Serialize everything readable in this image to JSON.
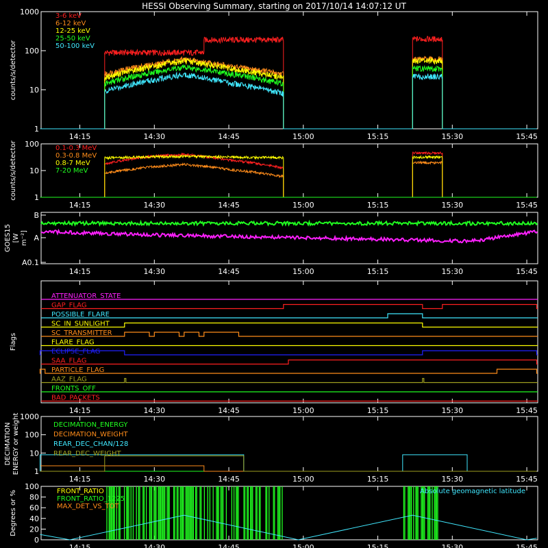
{
  "title": "HESSI Observing Summary, starting on 2017/10/14 14:07:12 UT",
  "time_ticks": [
    "14:15",
    "14:30",
    "14:45",
    "15:00",
    "15:15",
    "15:30",
    "15:45"
  ],
  "colors": {
    "background": "#000000",
    "axes": "#ffffff",
    "red": "#ff2020",
    "orange": "#ff8c1a",
    "yellow": "#ffff00",
    "green": "#20ff20",
    "cyan": "#40e8ff",
    "magenta": "#ff20ff",
    "blue": "#2020ff",
    "olive": "#a0a020"
  },
  "chart_data": [
    {
      "type": "line",
      "ylabel": "counts/s/detector",
      "yscale": "log",
      "ylim": [
        1,
        1000
      ],
      "ytick_labels": [
        "1",
        "10",
        "100",
        "1000"
      ],
      "x_unit": "UT",
      "series": [
        {
          "name": "3-6 keV",
          "color": "#ff2020",
          "points": [
            [
              "14:07",
              1
            ],
            [
              "14:20",
              1
            ],
            [
              "14:20",
              90
            ],
            [
              "14:40",
              90
            ],
            [
              "14:40",
              190
            ],
            [
              "14:56",
              190
            ],
            [
              "14:56",
              1
            ],
            [
              "15:22",
              1
            ],
            [
              "15:22",
              200
            ],
            [
              "15:28",
              200
            ],
            [
              "15:28",
              1
            ],
            [
              "15:47",
              1
            ]
          ]
        },
        {
          "name": "6-12 keV",
          "color": "#ff8c1a",
          "points": [
            [
              "14:07",
              1
            ],
            [
              "14:20",
              1
            ],
            [
              "14:20",
              25
            ],
            [
              "14:30",
              45
            ],
            [
              "14:36",
              60
            ],
            [
              "14:45",
              40
            ],
            [
              "14:56",
              25
            ],
            [
              "14:56",
              1
            ],
            [
              "15:22",
              1
            ],
            [
              "15:22",
              60
            ],
            [
              "15:28",
              60
            ],
            [
              "15:28",
              1
            ],
            [
              "15:47",
              1
            ]
          ]
        },
        {
          "name": "12-25 keV",
          "color": "#ffff00",
          "points": [
            [
              "14:07",
              1
            ],
            [
              "14:20",
              1
            ],
            [
              "14:20",
              20
            ],
            [
              "14:30",
              40
            ],
            [
              "14:36",
              55
            ],
            [
              "14:45",
              35
            ],
            [
              "14:56",
              20
            ],
            [
              "14:56",
              1
            ],
            [
              "15:22",
              1
            ],
            [
              "15:22",
              55
            ],
            [
              "15:28",
              55
            ],
            [
              "15:28",
              1
            ],
            [
              "15:47",
              1
            ]
          ]
        },
        {
          "name": "25-50 keV",
          "color": "#20ff20",
          "points": [
            [
              "14:07",
              1
            ],
            [
              "14:20",
              1
            ],
            [
              "14:20",
              14
            ],
            [
              "14:30",
              28
            ],
            [
              "14:36",
              38
            ],
            [
              "14:45",
              26
            ],
            [
              "14:56",
              14
            ],
            [
              "14:56",
              1
            ],
            [
              "15:22",
              1
            ],
            [
              "15:22",
              35
            ],
            [
              "15:28",
              35
            ],
            [
              "15:28",
              1
            ],
            [
              "15:47",
              1
            ]
          ]
        },
        {
          "name": "50-100 keV",
          "color": "#40e8ff",
          "points": [
            [
              "14:07",
              1
            ],
            [
              "14:20",
              1
            ],
            [
              "14:20",
              9
            ],
            [
              "14:30",
              18
            ],
            [
              "14:36",
              25
            ],
            [
              "14:45",
              15
            ],
            [
              "14:56",
              8
            ],
            [
              "14:56",
              1
            ],
            [
              "15:22",
              1
            ],
            [
              "15:22",
              22
            ],
            [
              "15:28",
              22
            ],
            [
              "15:28",
              1
            ],
            [
              "15:47",
              1
            ]
          ]
        }
      ]
    },
    {
      "type": "line",
      "ylabel": "counts/s/detector",
      "yscale": "log",
      "ylim": [
        1,
        100
      ],
      "ytick_labels": [
        "1",
        "10",
        "100"
      ],
      "series": [
        {
          "name": "0.1-0.3 MeV",
          "color": "#ff2020",
          "points": [
            [
              "14:07",
              1
            ],
            [
              "14:20",
              1
            ],
            [
              "14:20",
              18
            ],
            [
              "14:30",
              35
            ],
            [
              "14:36",
              40
            ],
            [
              "14:45",
              25
            ],
            [
              "14:56",
              12
            ],
            [
              "14:56",
              1
            ],
            [
              "15:22",
              1
            ],
            [
              "15:22",
              45
            ],
            [
              "15:28",
              45
            ],
            [
              "15:28",
              1
            ],
            [
              "15:47",
              1
            ]
          ]
        },
        {
          "name": "0.3-0.8 MeV",
          "color": "#ff8c1a",
          "points": [
            [
              "14:07",
              1
            ],
            [
              "14:20",
              1
            ],
            [
              "14:20",
              8
            ],
            [
              "14:30",
              14
            ],
            [
              "14:36",
              17
            ],
            [
              "14:45",
              11
            ],
            [
              "14:56",
              6
            ],
            [
              "14:56",
              1
            ],
            [
              "15:22",
              1
            ],
            [
              "15:22",
              20
            ],
            [
              "15:28",
              20
            ],
            [
              "15:28",
              1
            ],
            [
              "15:47",
              1
            ]
          ]
        },
        {
          "name": "0.8-7 MeV",
          "color": "#ffff00",
          "points": [
            [
              "14:07",
              1
            ],
            [
              "14:20",
              1
            ],
            [
              "14:20",
              30
            ],
            [
              "14:30",
              33
            ],
            [
              "14:36",
              34
            ],
            [
              "14:45",
              32
            ],
            [
              "14:56",
              30
            ],
            [
              "14:56",
              1
            ],
            [
              "15:22",
              1
            ],
            [
              "15:22",
              32
            ],
            [
              "15:28",
              32
            ],
            [
              "15:28",
              1
            ],
            [
              "15:47",
              1
            ]
          ]
        },
        {
          "name": "7-20 MeV",
          "color": "#20ff20",
          "points": [
            [
              "14:07",
              1
            ],
            [
              "15:47",
              1
            ]
          ]
        }
      ]
    },
    {
      "type": "line",
      "ylabel": "GOES15 [W m⁻²]",
      "ytick_labels": [
        "A0.1",
        "A",
        "B"
      ],
      "series": [
        {
          "color": "#20ff20",
          "points": [
            [
              "14:07",
              "B-"
            ],
            [
              "15:47",
              "B-"
            ]
          ]
        },
        {
          "color": "#ff20ff",
          "points": [
            [
              "14:07",
              "A+"
            ],
            [
              "14:30",
              "A"
            ],
            [
              "15:34",
              "A-"
            ],
            [
              "15:47",
              "A+"
            ]
          ]
        }
      ]
    },
    {
      "type": "line",
      "ylabel": "Flags",
      "series": [
        {
          "name": "ATTENUATOR_STATE",
          "color": "#ff20ff",
          "on_intervals": []
        },
        {
          "name": "GAP_FLAG",
          "color": "#ff2020",
          "on_intervals": [
            [
              "14:56",
              "15:24"
            ],
            [
              "15:28",
              "15:47"
            ]
          ]
        },
        {
          "name": "POSSIBLE_FLARE",
          "color": "#40e8ff",
          "on_intervals": [
            [
              "15:17",
              "15:24"
            ]
          ]
        },
        {
          "name": "SC_IN_SUNLIGHT",
          "color": "#ffff00",
          "on_intervals": [
            [
              "14:24",
              "15:24"
            ]
          ]
        },
        {
          "name": "SC_TRANSMITTER",
          "color": "#ff8c1a",
          "on_intervals": [
            [
              "14:24",
              "14:29"
            ],
            [
              "14:30",
              "14:35"
            ],
            [
              "14:36",
              "14:39"
            ],
            [
              "14:40",
              "14:47"
            ]
          ]
        },
        {
          "name": "FLARE_FLAG",
          "color": "#ffff00",
          "on_intervals": []
        },
        {
          "name": "ECLIPSE_FLAG",
          "color": "#2020ff",
          "on_intervals": [
            [
              "14:07",
              "14:24"
            ],
            [
              "15:24",
              "15:47"
            ]
          ]
        },
        {
          "name": "SAA_FLAG",
          "color": "#ff2020",
          "on_intervals": [
            [
              "14:57",
              "15:47"
            ]
          ]
        },
        {
          "name": "PARTICLE_FLAG",
          "color": "#ff8c1a",
          "on_intervals": [
            [
              "14:07",
              "14:08"
            ],
            [
              "15:39",
              "15:47"
            ]
          ]
        },
        {
          "name": "AAZ_FLAG",
          "color": "#a0a020",
          "on_intervals": [
            [
              "14:24",
              "14:24"
            ],
            [
              "15:24",
              "15:24"
            ]
          ]
        },
        {
          "name": "FRONTS_OFF",
          "color": "#20ff20",
          "on_intervals": []
        },
        {
          "name": "BAD_PACKETS",
          "color": "#ff2020",
          "on_intervals": []
        }
      ]
    },
    {
      "type": "line",
      "ylabel": "DECIMATION ENERGY or weight",
      "yscale": "log",
      "ylim": [
        1,
        1000
      ],
      "ytick_labels": [
        "1",
        "10",
        "100",
        "1000"
      ],
      "series": [
        {
          "name": "DECIMATION_ENERGY",
          "color": "#20ff20",
          "points": [
            [
              "14:07",
              1
            ],
            [
              "15:47",
              1
            ]
          ]
        },
        {
          "name": "DECIMATION_WEIGHT",
          "color": "#ff8c1a",
          "points": [
            [
              "14:07",
              1
            ],
            [
              "14:07",
              2
            ],
            [
              "14:40",
              2
            ],
            [
              "14:40",
              1
            ],
            [
              "15:47",
              1
            ]
          ]
        },
        {
          "name": "REAR_DEC_CHAN/128",
          "color": "#40e8ff",
          "points": [
            [
              "14:07",
              1
            ],
            [
              "14:07",
              8
            ],
            [
              "14:48",
              8
            ],
            [
              "14:48",
              1
            ],
            [
              "15:20",
              1
            ],
            [
              "15:20",
              8
            ],
            [
              "15:33",
              8
            ],
            [
              "15:33",
              1
            ],
            [
              "15:47",
              1
            ]
          ]
        },
        {
          "name": "REAR_DEC_WEIGHT",
          "color": "#a0a020",
          "points": [
            [
              "14:07",
              1
            ],
            [
              "14:20",
              1
            ],
            [
              "14:20",
              7
            ],
            [
              "14:48",
              7
            ],
            [
              "14:48",
              1
            ],
            [
              "15:47",
              1
            ]
          ]
        }
      ]
    },
    {
      "type": "line",
      "ylabel": "Degrees or %",
      "ylim": [
        0,
        100
      ],
      "ytick_labels": [
        "0",
        "20",
        "40",
        "60",
        "80",
        "100"
      ],
      "annotation": "Absolute geomagnetic latitude",
      "series": [
        {
          "name": "FRONT_RATIO",
          "color": "#ffff00",
          "points": []
        },
        {
          "name": "FRONT_RATIO_1225",
          "color": "#20ff20",
          "on_intervals": [
            [
              "14:20",
              "14:56"
            ],
            [
              "15:20",
              "15:28"
            ]
          ]
        },
        {
          "name": "MAX_DET_VS_TOT",
          "color": "#ff8c1a",
          "points": []
        },
        {
          "color": "#40e8ff",
          "points": [
            [
              "14:07",
              10
            ],
            [
              "14:13",
              0
            ],
            [
              "14:36",
              46
            ],
            [
              "14:59",
              0
            ],
            [
              "15:22",
              46
            ],
            [
              "15:45",
              0
            ],
            [
              "15:47",
              3
            ]
          ]
        }
      ]
    }
  ]
}
